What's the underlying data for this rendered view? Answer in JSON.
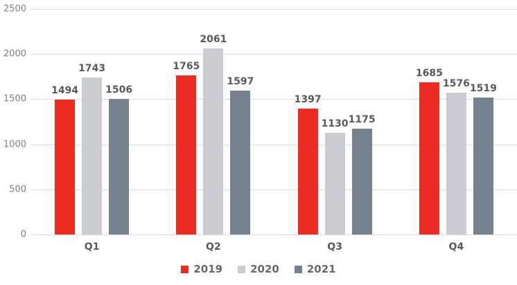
{
  "chart_data": {
    "type": "bar",
    "title": "",
    "categories": [
      "Q1",
      "Q2",
      "Q3",
      "Q4"
    ],
    "series": [
      {
        "name": "2019",
        "color": "#ec2b22",
        "values": [
          1494,
          1765,
          1397,
          1685
        ]
      },
      {
        "name": "2020",
        "color": "#c9cdd2",
        "values": [
          1743,
          2061,
          1130,
          1576
        ]
      },
      {
        "name": "2021",
        "color": "#75828e",
        "values": [
          1506,
          1597,
          1175,
          1519
        ]
      }
    ],
    "ylim": [
      0,
      2500
    ],
    "yticks": [
      0,
      500,
      1000,
      1500,
      2000,
      2500
    ],
    "grid": "horizontal",
    "legend_position": "bottom",
    "data_labels": true
  },
  "colors": {
    "gridline": "#dadde0",
    "axis_text": "#808080",
    "label_text": "#595959",
    "legend_text": "#666a6d",
    "background": "#ffffff"
  }
}
